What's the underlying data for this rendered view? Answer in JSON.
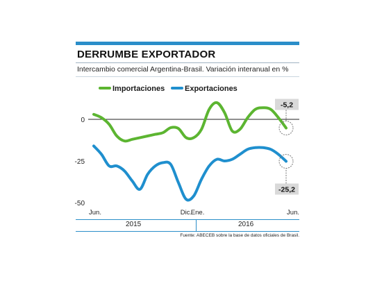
{
  "header": {
    "title": "DERRUMBE EXPORTADOR",
    "subtitle": "Intercambio comercial Argentina-Brasil. Variación interanual en %"
  },
  "footer": {
    "years": [
      "2015",
      "2016"
    ],
    "source": "Fuente: ABECEB sobre la base de datos oficiales de Brasil."
  },
  "colors": {
    "importaciones": "#5cb531",
    "exportaciones": "#1f8fce",
    "accent": "#2a8ec9",
    "callout_box": "#d9d9d9"
  },
  "chart_data": {
    "type": "line",
    "title": "DERRUMBE EXPORTADOR",
    "subtitle": "Intercambio comercial Argentina-Brasil. Variación interanual en %",
    "x": [
      0,
      1,
      2,
      3,
      4,
      5,
      6,
      7,
      8,
      9,
      10,
      11,
      12,
      13,
      14,
      15,
      16,
      17,
      18,
      19,
      20,
      21,
      22,
      23,
      24,
      25
    ],
    "x_tick_labels": [
      {
        "x": 0,
        "label": "Jun."
      },
      {
        "x": 12,
        "label": "Dic."
      },
      {
        "x": 13.5,
        "label": "Ene."
      },
      {
        "x": 25,
        "label": "Jun."
      }
    ],
    "ylim": [
      -50,
      10
    ],
    "y_ticks": [
      {
        "value": 0,
        "label": "0"
      },
      {
        "value": -25,
        "label": "-25"
      },
      {
        "value": -50,
        "label": "-50"
      }
    ],
    "legend": "top",
    "series": [
      {
        "name": "Importaciones",
        "color": "#5cb531",
        "values": [
          3,
          1,
          -3,
          -10,
          -13,
          -12,
          -11,
          -10,
          -9,
          -8,
          -5,
          -5.5,
          -11,
          -11,
          -6,
          6,
          10,
          4,
          -7,
          -6,
          1,
          6,
          7,
          6,
          1,
          -5.2
        ]
      },
      {
        "name": "Exportaciones",
        "color": "#1f8fce",
        "values": [
          -16,
          -21,
          -28,
          -28,
          -31,
          -37,
          -42,
          -33,
          -28,
          -26,
          -27,
          -38,
          -48,
          -46,
          -36,
          -28,
          -24,
          -25,
          -24,
          -21,
          -18,
          -17,
          -17,
          -18,
          -21,
          -25.2
        ]
      }
    ],
    "end_labels": [
      {
        "series": "Importaciones",
        "label": "-5,2"
      },
      {
        "series": "Exportaciones",
        "label": "-25,2"
      }
    ],
    "zero_line": true
  }
}
